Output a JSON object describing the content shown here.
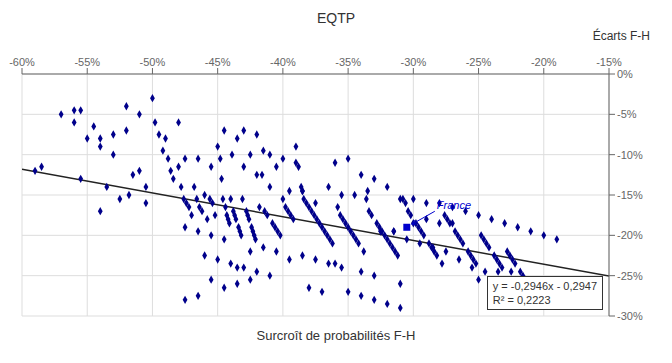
{
  "chart_data": {
    "type": "scatter",
    "title": "EQTP",
    "x_label": "Surcroît de probabilités F-H",
    "y_label": "Écarts F-H",
    "xlim": [
      -0.6,
      -0.15
    ],
    "ylim": [
      -0.3,
      0.0
    ],
    "xticks": [
      {
        "value": -0.6,
        "label": "-60%"
      },
      {
        "value": -0.55,
        "label": "-55%"
      },
      {
        "value": -0.5,
        "label": "-50%"
      },
      {
        "value": -0.45,
        "label": "-45%"
      },
      {
        "value": -0.4,
        "label": "-40%"
      },
      {
        "value": -0.35,
        "label": "-35%"
      },
      {
        "value": -0.3,
        "label": "-30%"
      },
      {
        "value": -0.25,
        "label": "-25%"
      },
      {
        "value": -0.2,
        "label": "-20%"
      },
      {
        "value": -0.15,
        "label": "-15%"
      }
    ],
    "yticks": [
      {
        "value": 0.0,
        "label": "0%"
      },
      {
        "value": -0.05,
        "label": "-5%"
      },
      {
        "value": -0.1,
        "label": "-10%"
      },
      {
        "value": -0.15,
        "label": "-15%"
      },
      {
        "value": -0.2,
        "label": "-20%"
      },
      {
        "value": -0.25,
        "label": "-25%"
      },
      {
        "value": -0.3,
        "label": "-30%"
      }
    ],
    "grid": true,
    "series": [
      {
        "type": "scatter",
        "color": "#00008B",
        "marker": "diamond",
        "x": [
          -0.585,
          -0.56,
          -0.545,
          -0.54,
          -0.53,
          -0.525,
          -0.52,
          -0.518,
          -0.515,
          -0.51,
          -0.505,
          -0.505,
          -0.5,
          -0.498,
          -0.495,
          -0.492,
          -0.49,
          -0.488,
          -0.486,
          -0.484,
          -0.48,
          -0.478,
          -0.476,
          -0.474,
          -0.472,
          -0.47,
          -0.468,
          -0.466,
          -0.464,
          -0.462,
          -0.46,
          -0.458,
          -0.456,
          -0.454,
          -0.452,
          -0.45,
          -0.448,
          -0.447,
          -0.446,
          -0.445,
          -0.444,
          -0.443,
          -0.442,
          -0.441,
          -0.44,
          -0.439,
          -0.438,
          -0.437,
          -0.436,
          -0.435,
          -0.434,
          -0.433,
          -0.432,
          -0.431,
          -0.43,
          -0.43,
          -0.428,
          -0.427,
          -0.426,
          -0.425,
          -0.424,
          -0.423,
          -0.422,
          -0.421,
          -0.42,
          -0.42,
          -0.418,
          -0.416,
          -0.414,
          -0.412,
          -0.41,
          -0.41,
          -0.408,
          -0.406,
          -0.404,
          -0.402,
          -0.4,
          -0.4,
          -0.398,
          -0.396,
          -0.394,
          -0.392,
          -0.39,
          -0.39,
          -0.388,
          -0.386,
          -0.385,
          -0.384,
          -0.382,
          -0.38,
          -0.378,
          -0.376,
          -0.374,
          -0.372,
          -0.37,
          -0.368,
          -0.366,
          -0.365,
          -0.364,
          -0.362,
          -0.36,
          -0.36,
          -0.358,
          -0.356,
          -0.355,
          -0.354,
          -0.352,
          -0.35,
          -0.35,
          -0.348,
          -0.346,
          -0.345,
          -0.344,
          -0.342,
          -0.34,
          -0.34,
          -0.338,
          -0.336,
          -0.335,
          -0.334,
          -0.332,
          -0.33,
          -0.33,
          -0.328,
          -0.326,
          -0.325,
          -0.324,
          -0.322,
          -0.32,
          -0.32,
          -0.318,
          -0.316,
          -0.315,
          -0.314,
          -0.312,
          -0.31,
          -0.31,
          -0.308,
          -0.306,
          -0.305,
          -0.304,
          -0.302,
          -0.3,
          -0.3,
          -0.298,
          -0.296,
          -0.295,
          -0.294,
          -0.292,
          -0.29,
          -0.29,
          -0.288,
          -0.286,
          -0.285,
          -0.284,
          -0.282,
          -0.28,
          -0.28,
          -0.278,
          -0.276,
          -0.275,
          -0.274,
          -0.272,
          -0.27,
          -0.27,
          -0.268,
          -0.266,
          -0.265,
          -0.264,
          -0.262,
          -0.26,
          -0.258,
          -0.256,
          -0.255,
          -0.254,
          -0.252,
          -0.25,
          -0.25,
          -0.248,
          -0.246,
          -0.245,
          -0.244,
          -0.242,
          -0.24,
          -0.24,
          -0.238,
          -0.236,
          -0.235,
          -0.234,
          -0.232,
          -0.23,
          -0.23,
          -0.228,
          -0.226,
          -0.225,
          -0.224,
          -0.222,
          -0.22,
          -0.218,
          -0.216,
          -0.214,
          -0.21,
          -0.2,
          -0.19,
          -0.475,
          -0.465,
          -0.455,
          -0.475,
          -0.465,
          -0.455,
          -0.455,
          -0.46,
          -0.45,
          -0.445,
          -0.44,
          -0.435,
          -0.43,
          -0.425,
          -0.42,
          -0.415,
          -0.415,
          -0.41,
          -0.405,
          -0.405,
          -0.395,
          -0.395,
          -0.385,
          -0.385,
          -0.38,
          -0.375,
          -0.375,
          -0.37,
          -0.365,
          -0.355,
          -0.35,
          -0.34,
          -0.33,
          -0.325,
          -0.32,
          -0.315,
          -0.31,
          -0.475,
          -0.465,
          -0.445,
          -0.435,
          -0.425,
          -0.555,
          -0.535,
          -0.54,
          -0.59,
          -0.57,
          -0.56,
          -0.55,
          -0.54,
          -0.53,
          -0.52,
          -0.51,
          -0.48,
          -0.555
        ],
        "values": [
          -0.115,
          -0.045,
          -0.065,
          -0.08,
          -0.075,
          -0.155,
          -0.07,
          -0.15,
          -0.125,
          -0.12,
          -0.14,
          -0.16,
          -0.03,
          -0.06,
          -0.075,
          -0.095,
          -0.08,
          -0.105,
          -0.12,
          -0.13,
          -0.115,
          -0.14,
          -0.155,
          -0.16,
          -0.165,
          -0.175,
          -0.14,
          -0.155,
          -0.165,
          -0.17,
          -0.15,
          -0.18,
          -0.155,
          -0.16,
          -0.175,
          -0.09,
          -0.105,
          -0.13,
          -0.155,
          -0.07,
          -0.165,
          -0.175,
          -0.18,
          -0.185,
          -0.155,
          -0.1,
          -0.17,
          -0.175,
          -0.18,
          -0.08,
          -0.19,
          -0.195,
          -0.2,
          -0.155,
          -0.07,
          -0.115,
          -0.17,
          -0.175,
          -0.18,
          -0.1,
          -0.19,
          -0.195,
          -0.2,
          -0.205,
          -0.075,
          -0.125,
          -0.165,
          -0.125,
          -0.17,
          -0.175,
          -0.1,
          -0.14,
          -0.185,
          -0.19,
          -0.195,
          -0.2,
          -0.105,
          -0.155,
          -0.165,
          -0.17,
          -0.175,
          -0.18,
          -0.09,
          -0.11,
          -0.115,
          -0.14,
          -0.145,
          -0.155,
          -0.16,
          -0.165,
          -0.17,
          -0.175,
          -0.18,
          -0.185,
          -0.19,
          -0.195,
          -0.2,
          -0.14,
          -0.205,
          -0.21,
          -0.11,
          -0.235,
          -0.165,
          -0.175,
          -0.15,
          -0.18,
          -0.185,
          -0.105,
          -0.19,
          -0.195,
          -0.2,
          -0.15,
          -0.205,
          -0.21,
          -0.125,
          -0.245,
          -0.22,
          -0.155,
          -0.145,
          -0.17,
          -0.175,
          -0.13,
          -0.25,
          -0.185,
          -0.19,
          -0.195,
          -0.195,
          -0.2,
          -0.14,
          -0.205,
          -0.21,
          -0.215,
          -0.195,
          -0.22,
          -0.225,
          -0.155,
          -0.26,
          -0.155,
          -0.16,
          -0.205,
          -0.17,
          -0.175,
          -0.155,
          -0.185,
          -0.185,
          -0.19,
          -0.21,
          -0.195,
          -0.2,
          -0.16,
          -0.18,
          -0.21,
          -0.215,
          -0.215,
          -0.22,
          -0.225,
          -0.16,
          -0.185,
          -0.235,
          -0.175,
          -0.22,
          -0.18,
          -0.185,
          -0.165,
          -0.185,
          -0.195,
          -0.2,
          -0.23,
          -0.205,
          -0.21,
          -0.17,
          -0.22,
          -0.225,
          -0.24,
          -0.23,
          -0.235,
          -0.175,
          -0.255,
          -0.2,
          -0.205,
          -0.245,
          -0.21,
          -0.215,
          -0.18,
          -0.26,
          -0.225,
          -0.23,
          -0.245,
          -0.235,
          -0.24,
          -0.185,
          -0.265,
          -0.22,
          -0.225,
          -0.245,
          -0.23,
          -0.235,
          -0.19,
          -0.245,
          -0.25,
          -0.255,
          -0.195,
          -0.2,
          -0.205,
          -0.105,
          -0.105,
          -0.115,
          -0.19,
          -0.195,
          -0.2,
          -0.255,
          -0.225,
          -0.23,
          -0.205,
          -0.235,
          -0.24,
          -0.24,
          -0.22,
          -0.245,
          -0.215,
          -0.095,
          -0.25,
          -0.115,
          -0.22,
          -0.145,
          -0.23,
          -0.145,
          -0.225,
          -0.265,
          -0.16,
          -0.23,
          -0.27,
          -0.235,
          -0.24,
          -0.27,
          -0.275,
          -0.28,
          -0.195,
          -0.285,
          -0.195,
          -0.29,
          -0.28,
          -0.275,
          -0.265,
          -0.26,
          -0.255,
          -0.13,
          -0.14,
          -0.17,
          -0.12,
          -0.05,
          -0.06,
          -0.08,
          -0.09,
          -0.1,
          -0.04,
          -0.05,
          -0.06,
          -0.045
        ]
      },
      {
        "type": "scatter",
        "color": "#0000CD",
        "marker": "square",
        "x": [
          -0.305
        ],
        "values": [
          -0.19
        ]
      },
      {
        "type": "line",
        "color": "#222222",
        "x": [
          -0.6,
          -0.15
        ],
        "values": [
          -0.11794,
          -0.25051
        ]
      }
    ],
    "annotations": [
      {
        "text": "France",
        "x": -0.305,
        "y": -0.19,
        "color": "#0000CD"
      },
      {
        "text": "y = -0,2946x - 0,2947"
      },
      {
        "text": "R² = 0,2223"
      }
    ]
  }
}
